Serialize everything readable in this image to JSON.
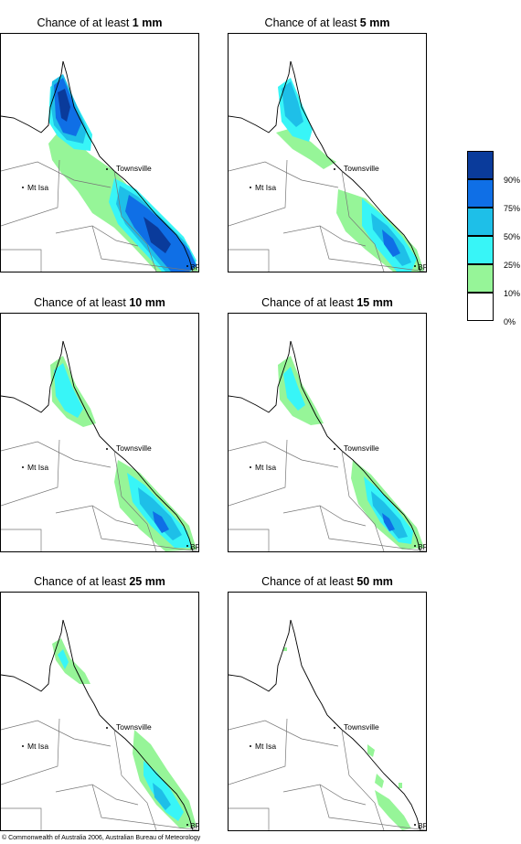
{
  "title_prefix": "Chance of at least",
  "panels": [
    {
      "amount": "1 mm"
    },
    {
      "amount": "5 mm"
    },
    {
      "amount": "10 mm"
    },
    {
      "amount": "15 mm"
    },
    {
      "amount": "25 mm"
    },
    {
      "amount": "50 mm"
    }
  ],
  "places": {
    "townsville": "Townsville",
    "mt_isa": "Mt Isa",
    "bris": "BRIS"
  },
  "legend": {
    "ticks": [
      "90%",
      "75%",
      "50%",
      "25%",
      "10%",
      "0%"
    ],
    "colors": [
      "#0a3b9b",
      "#0f6fe6",
      "#1ebfe8",
      "#38f5f7",
      "#96f598",
      "#ffffff"
    ]
  },
  "footer": "© Commonwealth of Australia 2006, Australian Bureau of Meteorology"
}
